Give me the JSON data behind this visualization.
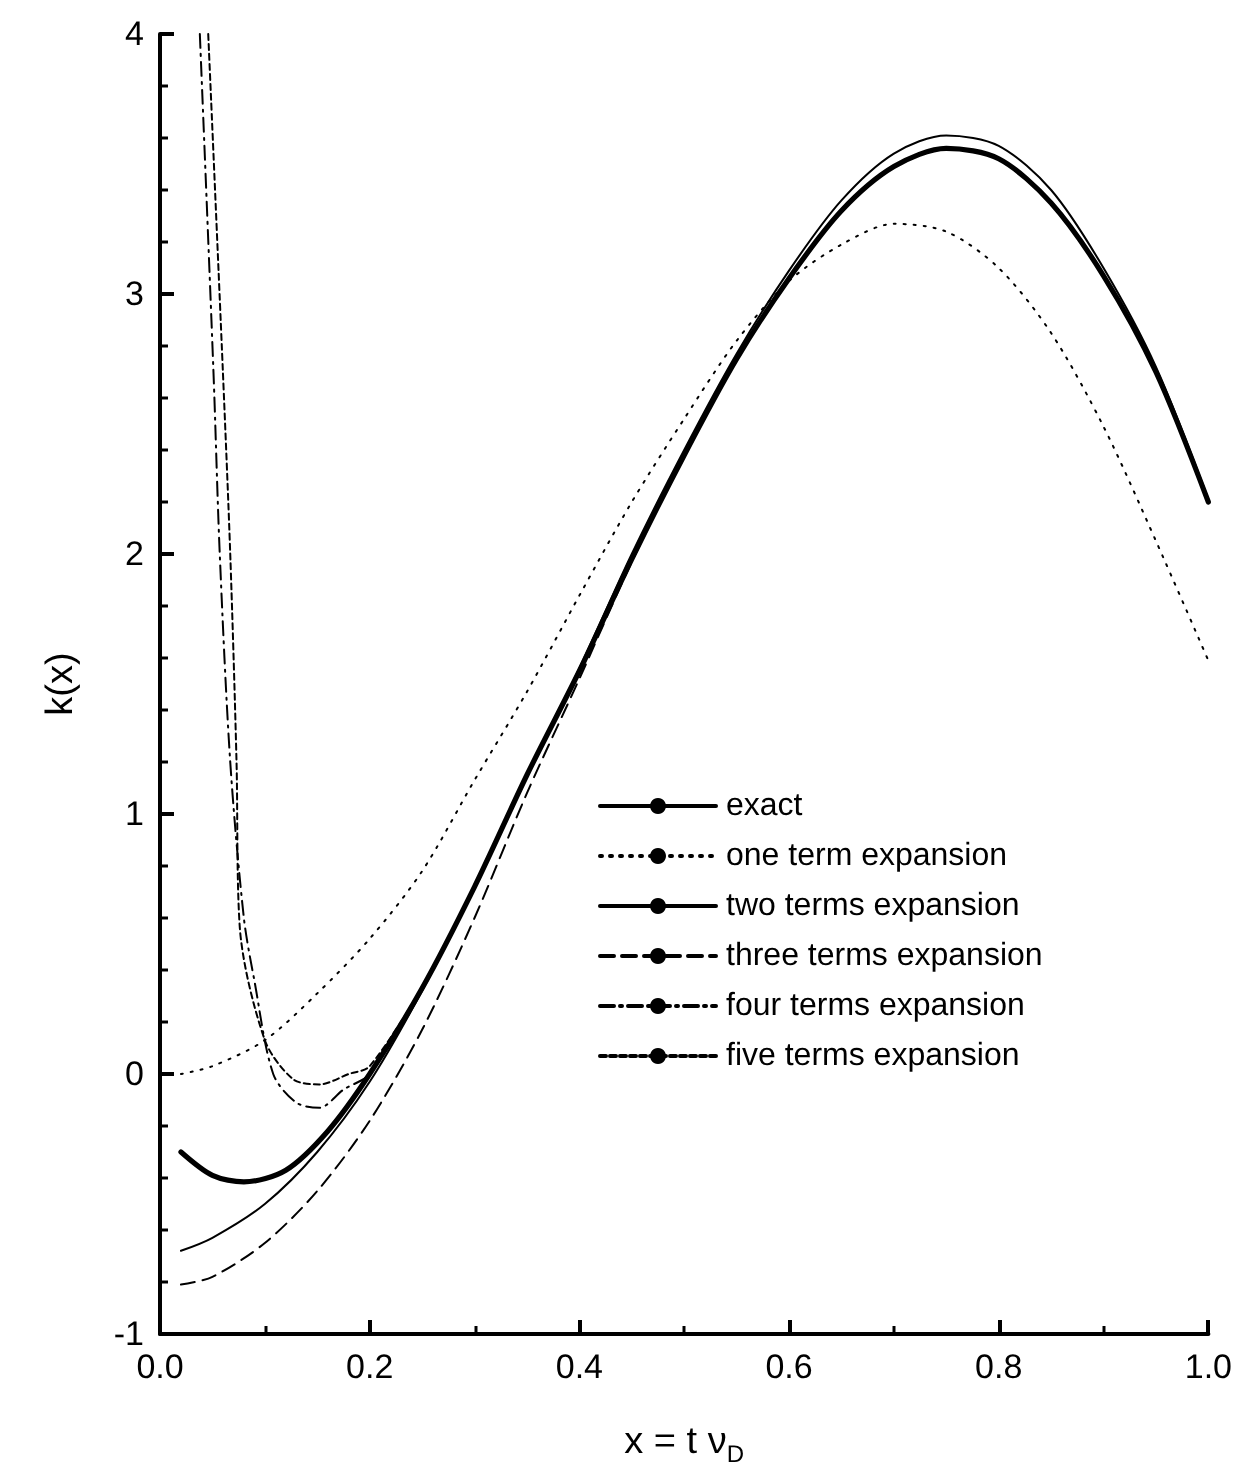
{
  "chart_data": {
    "type": "line",
    "xlabel": "x = t ν$_{D}$",
    "ylabel": "k(x)",
    "xlim": [
      0,
      1
    ],
    "ylim": [
      -1,
      4
    ],
    "xticks": [
      {
        "value": 0,
        "label": "0.0"
      },
      {
        "value": 0.2,
        "label": "0.2"
      },
      {
        "value": 0.4,
        "label": "0.4"
      },
      {
        "value": 0.6,
        "label": "0.6"
      },
      {
        "value": 0.8,
        "label": "0.8"
      },
      {
        "value": 1,
        "label": "1.0"
      }
    ],
    "yticks": [
      -1,
      0,
      1,
      2,
      3,
      4
    ],
    "grid": false,
    "legend": "right",
    "marker": "none",
    "series": [
      {
        "name": "exact",
        "color": "#000000",
        "line_style": "solid",
        "x": [
          0.02,
          0.05,
          0.08,
          0.12,
          0.16,
          0.2,
          0.25,
          0.3,
          0.35,
          0.4,
          0.45,
          0.5,
          0.55,
          0.6,
          0.65,
          0.7,
          0.75,
          0.8,
          0.85,
          0.9,
          0.95,
          1.0
        ],
        "values": [
          -0.3,
          -0.39,
          -0.415,
          -0.37,
          -0.22,
          0.0,
          0.33,
          0.72,
          1.15,
          1.55,
          1.98,
          2.38,
          2.75,
          3.06,
          3.32,
          3.49,
          3.56,
          3.52,
          3.35,
          3.07,
          2.7,
          2.2
        ]
      },
      {
        "name": "one term expansion",
        "color": "#000000",
        "line_style": "dotted",
        "x": [
          0.02,
          0.05,
          0.1,
          0.15,
          0.2,
          0.25,
          0.3,
          0.35,
          0.4,
          0.45,
          0.5,
          0.55,
          0.6,
          0.65,
          0.7,
          0.75,
          0.8,
          0.85,
          0.9,
          0.95,
          1.0
        ],
        "values": [
          0.0,
          0.03,
          0.13,
          0.31,
          0.52,
          0.78,
          1.13,
          1.47,
          1.84,
          2.2,
          2.52,
          2.82,
          3.05,
          3.19,
          3.27,
          3.24,
          3.1,
          2.85,
          2.49,
          2.05,
          1.59
        ]
      },
      {
        "name": "two terms expansion",
        "color": "#000000",
        "line_style": "solid",
        "x": [
          0.02,
          0.05,
          0.1,
          0.15,
          0.2,
          0.25,
          0.3,
          0.35,
          0.4,
          0.45,
          0.5,
          0.55,
          0.6,
          0.65,
          0.7,
          0.75,
          0.8,
          0.85,
          0.9,
          0.95,
          1.0
        ],
        "values": [
          -0.68,
          -0.63,
          -0.5,
          -0.3,
          -0.03,
          0.32,
          0.72,
          1.15,
          1.56,
          2.0,
          2.4,
          2.77,
          3.09,
          3.36,
          3.54,
          3.61,
          3.57,
          3.4,
          3.1,
          2.72,
          2.21
        ]
      },
      {
        "name": "three terms expansion",
        "color": "#000000",
        "line_style": "dashed",
        "x": [
          0.02,
          0.05,
          0.1,
          0.15,
          0.2,
          0.25,
          0.3,
          0.35,
          0.4,
          0.45,
          0.5
        ],
        "values": [
          -0.81,
          -0.78,
          -0.65,
          -0.45,
          -0.18,
          0.17,
          0.6,
          1.08,
          1.52,
          1.97,
          2.38
        ]
      },
      {
        "name": "four terms expansion",
        "color": "#000000",
        "line_style": "dashdot",
        "x": [
          0.038,
          0.051,
          0.057,
          0.067,
          0.08,
          0.09,
          0.108,
          0.13,
          0.152,
          0.175,
          0.2,
          0.25
        ],
        "values": [
          4.0,
          2.7,
          2.0,
          1.2,
          0.6,
          0.36,
          0.0,
          -0.11,
          -0.13,
          -0.06,
          0.0,
          0.33
        ]
      },
      {
        "name": "five terms expansion",
        "color": "#000000",
        "line_style": "shortdash",
        "x": [
          0.046,
          0.06,
          0.067,
          0.073,
          0.076,
          0.1,
          0.127,
          0.152,
          0.18,
          0.2,
          0.25
        ],
        "values": [
          4.0,
          2.7,
          2.0,
          1.2,
          0.57,
          0.13,
          -0.02,
          -0.04,
          0.0,
          0.03,
          0.33
        ]
      }
    ]
  }
}
